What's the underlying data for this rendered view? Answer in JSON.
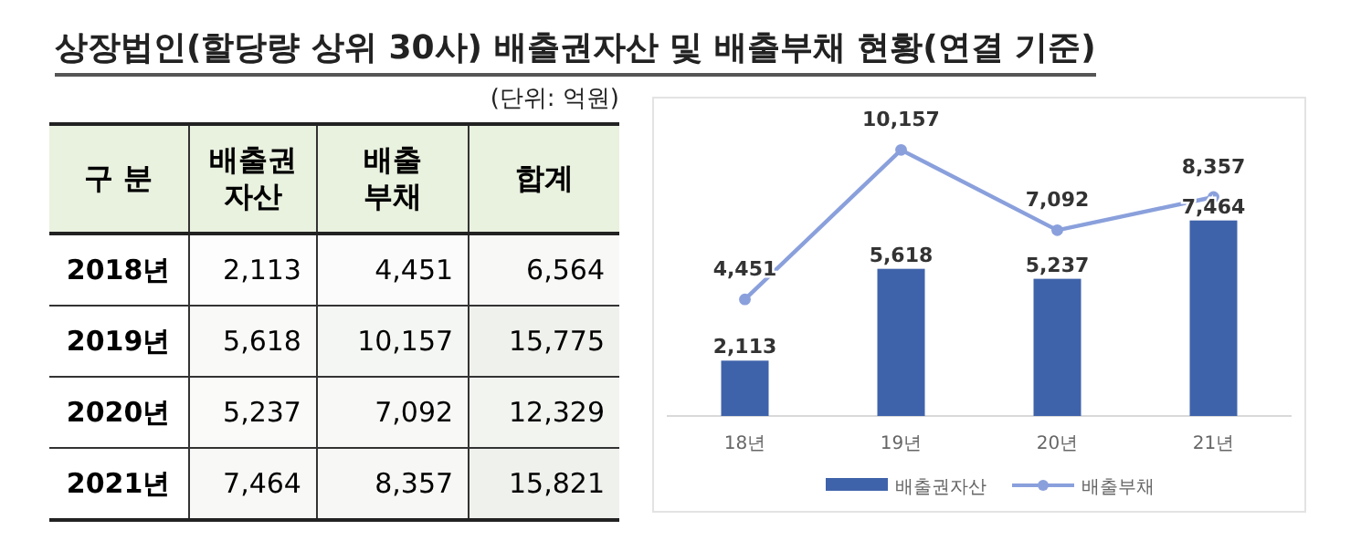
{
  "chart_data": [
    {
      "type": "heatmap",
      "title": "상장법인(할당량 상위 30사) 배출권자산 및 배출부채 현황(연결 기준)",
      "subtitle": "(단위: 억원)",
      "ylabel": "구 분",
      "categories": [
        "배출권\n자산",
        "배출\n부채",
        "합계"
      ],
      "y_categories": [
        "2018년",
        "2019년",
        "2020년",
        "2021년"
      ],
      "cells": [
        [
          2113,
          4451,
          6564
        ],
        [
          5618,
          10157,
          15775
        ],
        [
          5237,
          7092,
          12329
        ],
        [
          7464,
          8357,
          15821
        ]
      ],
      "cell_labels": [
        [
          "2,113",
          "4,451",
          "6,564"
        ],
        [
          "5,618",
          "10,157",
          "15,775"
        ],
        [
          "5,237",
          "7,092",
          "12,329"
        ],
        [
          "7,464",
          "8,357",
          "15,821"
        ]
      ]
    },
    {
      "type": "bar",
      "categories": [
        "18년",
        "19년",
        "20년",
        "21년"
      ],
      "legend": "bottom",
      "tick_labels": "x",
      "series": [
        {
          "name": "배출권자산",
          "color": "#3f63aa",
          "values": [
            2113,
            5618,
            5237,
            7464
          ],
          "value_labels": [
            "2,113",
            "5,618",
            "5,237",
            "7,464"
          ]
        },
        {
          "name": "배출부채",
          "type": "line",
          "color": "#8aa0dc",
          "marker": "circle",
          "values": [
            4451,
            10157,
            7092,
            8357
          ],
          "value_labels": [
            "4,451",
            "10,157",
            "7,092",
            "8,357"
          ]
        }
      ]
    }
  ]
}
